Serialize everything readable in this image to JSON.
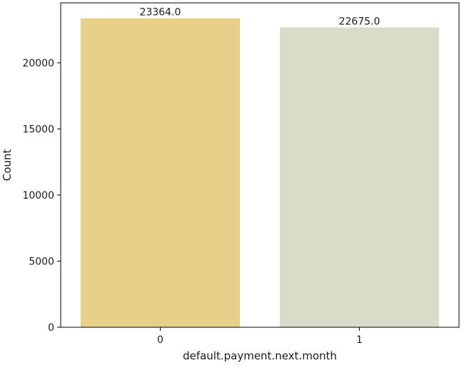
{
  "chart_data": {
    "type": "bar",
    "categories": [
      "0",
      "1"
    ],
    "values": [
      23364.0,
      22675.0
    ],
    "data_labels": [
      "23364.0",
      "22675.0"
    ],
    "xlabel": "default.payment.next.month",
    "ylabel": "Count",
    "ylim": [
      0,
      24532
    ],
    "yticks": [
      0,
      5000,
      10000,
      15000,
      20000
    ],
    "ytick_labels": [
      "0",
      "5000",
      "10000",
      "15000",
      "20000"
    ],
    "colors": [
      "#e8d08a",
      "#d8dcc8"
    ],
    "grid": false,
    "legend": "none"
  }
}
